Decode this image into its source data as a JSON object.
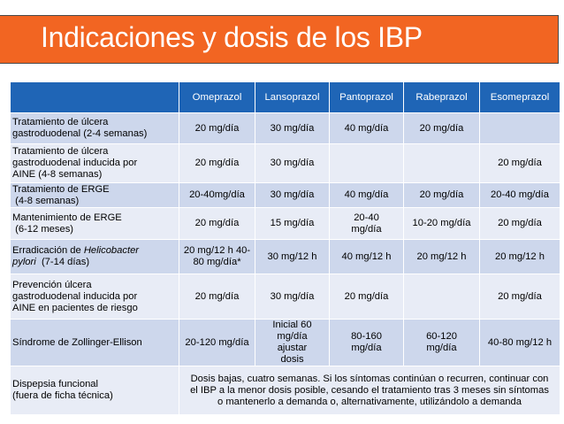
{
  "slide": {
    "title": "Indicaciones y dosis de los IBP",
    "accent_color": "#f26522",
    "header_color": "#1f65b6"
  },
  "table": {
    "columns": [
      "",
      "Omeprazol",
      "Lansoprazol",
      "Pantoprazol",
      "Rabeprazol",
      "Esomeprazol"
    ],
    "rows": [
      {
        "indication_lines": [
          "Tratamiento de úlcera",
          "gastroduodenal (2-4 semanas)"
        ],
        "doses": [
          "20 mg/día",
          "30 mg/día",
          "40 mg/día",
          "20 mg/día",
          ""
        ]
      },
      {
        "indication_lines": [
          "Tratamiento de úlcera",
          "gastroduodenal inducida por",
          "AINE (4-8 semanas)"
        ],
        "doses": [
          "20 mg/día",
          "30 mg/día",
          "",
          "",
          "20 mg/día"
        ]
      },
      {
        "indication_lines": [
          "Tratamiento de ERGE",
          " (4-8 semanas)"
        ],
        "doses": [
          "20-40mg/día",
          "30 mg/día",
          "40 mg/día",
          "20 mg/día",
          "20-40 mg/día"
        ]
      },
      {
        "indication_lines": [
          "Mantenimiento de ERGE",
          " (6-12 meses)"
        ],
        "doses": [
          "20 mg/día",
          "15 mg/día",
          "20-40 mg/día",
          "10-20 mg/día",
          "20 mg/día"
        ]
      },
      {
        "indication_parts": [
          "Erradicación de ",
          "Helicobacter",
          "pylori",
          "  (7-14 días)"
        ],
        "doses": [
          "20 mg/12 h 40-80 mg/día*",
          "30 mg/12 h",
          "40 mg/12 h",
          "20 mg/12 h",
          "20 mg/12 h"
        ]
      },
      {
        "indication_lines": [
          "Prevención úlcera",
          "gastroduodenal inducida por",
          "AINE en pacientes de riesgo"
        ],
        "doses": [
          "20 mg/día",
          "30 mg/día",
          "20 mg/día",
          "",
          "20 mg/día"
        ]
      },
      {
        "indication_lines": [
          "Síndrome de Zollinger-Ellison"
        ],
        "doses": [
          "20-120 mg/día",
          "Inicial 60 mg/día ajustar dosis",
          "80-160 mg/día",
          "60-120 mg/día",
          "40-80 mg/12 h"
        ]
      },
      {
        "indication_lines": [
          "Dispepsia funcional",
          "(fuera de ficha técnica)"
        ],
        "note": "Dosis bajas, cuatro semanas. Si los síntomas continúan o recurren, continuar con el IBP a la menor dosis posible, cesando el tratamiento tras 3 meses sin síntomas o mantenerlo a demanda o, alternativamente, utilizándolo a demanda"
      }
    ]
  }
}
